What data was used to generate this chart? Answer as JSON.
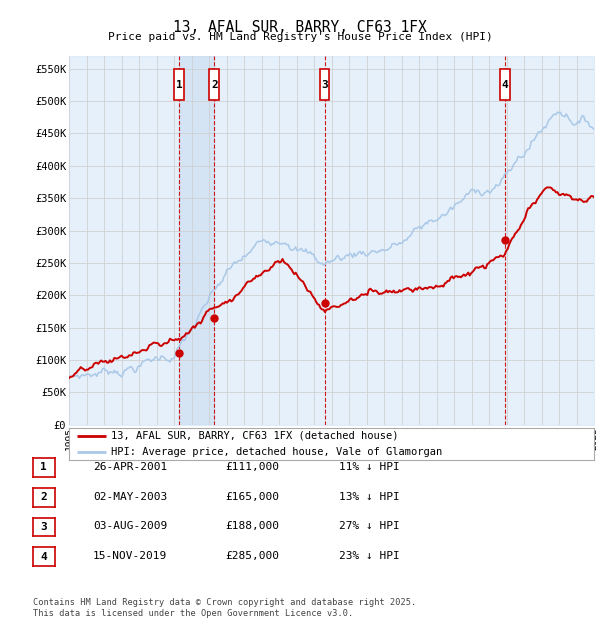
{
  "title": "13, AFAL SUR, BARRY, CF63 1FX",
  "subtitle": "Price paid vs. HM Land Registry's House Price Index (HPI)",
  "ylabel_values": [
    "£0",
    "£50K",
    "£100K",
    "£150K",
    "£200K",
    "£250K",
    "£300K",
    "£350K",
    "£400K",
    "£450K",
    "£500K",
    "£550K"
  ],
  "ylim": [
    0,
    570000
  ],
  "yticks": [
    0,
    50000,
    100000,
    150000,
    200000,
    250000,
    300000,
    350000,
    400000,
    450000,
    500000,
    550000
  ],
  "legend_line1": "13, AFAL SUR, BARRY, CF63 1FX (detached house)",
  "legend_line2": "HPI: Average price, detached house, Vale of Glamorgan",
  "transactions": [
    {
      "num": 1,
      "date": "26-APR-2001",
      "price": "£111,000",
      "hpi": "11% ↓ HPI",
      "year": 2001.3
    },
    {
      "num": 2,
      "date": "02-MAY-2003",
      "price": "£165,000",
      "hpi": "13% ↓ HPI",
      "year": 2003.3
    },
    {
      "num": 3,
      "date": "03-AUG-2009",
      "price": "£188,000",
      "hpi": "27% ↓ HPI",
      "year": 2009.6
    },
    {
      "num": 4,
      "date": "15-NOV-2019",
      "price": "£285,000",
      "hpi": "23% ↓ HPI",
      "year": 2019.9
    }
  ],
  "transaction_prices": [
    111000,
    165000,
    188000,
    285000
  ],
  "footer": "Contains HM Land Registry data © Crown copyright and database right 2025.\nThis data is licensed under the Open Government Licence v3.0.",
  "hpi_color": "#aac8e8",
  "price_color": "#cc0000",
  "vline_color": "#cc0000",
  "shade_color": "#d0e4f7",
  "plot_bg": "#ffffff",
  "grid_color": "#cccccc"
}
